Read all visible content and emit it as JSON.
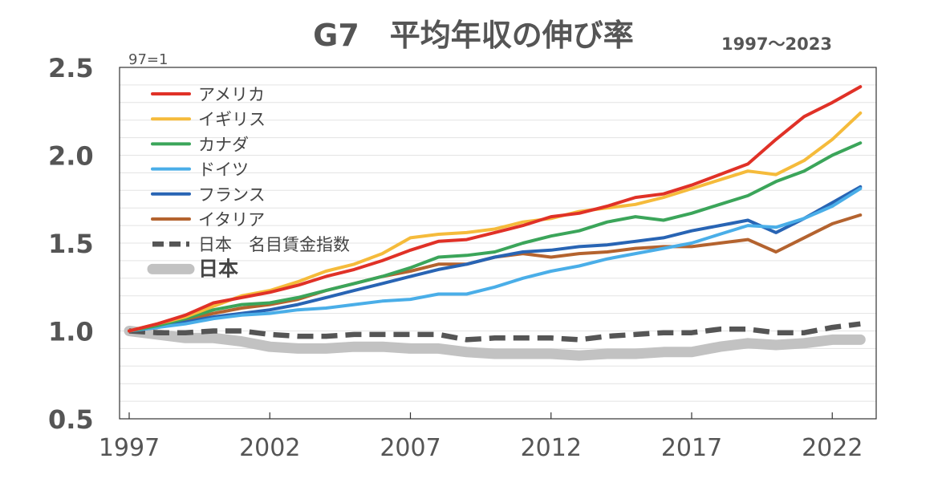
{
  "chart_data": {
    "type": "line",
    "title": "G7　平均年収の伸び率",
    "subtitle": "1997～2023",
    "index_note": "97=1",
    "xlabel": "",
    "ylabel": "",
    "xlim": [
      1997,
      2023
    ],
    "ylim": [
      0.5,
      2.5
    ],
    "y_ticks": [
      "0.5",
      "1.0",
      "1.5",
      "2.0",
      "2.5"
    ],
    "x_ticks": [
      "1997",
      "2002",
      "2007",
      "2012",
      "2017",
      "2022"
    ],
    "grid": "horizontal",
    "legend_position": "top-left",
    "x": [
      1997,
      1998,
      1999,
      2000,
      2001,
      2002,
      2003,
      2004,
      2005,
      2006,
      2007,
      2008,
      2009,
      2010,
      2011,
      2012,
      2013,
      2014,
      2015,
      2016,
      2017,
      2018,
      2019,
      2020,
      2021,
      2022,
      2023
    ],
    "series": [
      {
        "name": "アメリカ",
        "color": "#e03127",
        "style": "solid",
        "values": [
          1.0,
          1.04,
          1.09,
          1.16,
          1.19,
          1.22,
          1.26,
          1.31,
          1.35,
          1.4,
          1.46,
          1.51,
          1.52,
          1.56,
          1.6,
          1.65,
          1.67,
          1.71,
          1.76,
          1.78,
          1.83,
          1.89,
          1.95,
          2.09,
          2.22,
          2.3,
          2.39
        ]
      },
      {
        "name": "イギリス",
        "color": "#f5bb3b",
        "style": "solid",
        "values": [
          1.0,
          1.04,
          1.08,
          1.14,
          1.2,
          1.23,
          1.28,
          1.34,
          1.38,
          1.44,
          1.53,
          1.55,
          1.56,
          1.58,
          1.62,
          1.64,
          1.68,
          1.7,
          1.72,
          1.76,
          1.81,
          1.86,
          1.91,
          1.89,
          1.97,
          2.09,
          2.24
        ]
      },
      {
        "name": "カナダ",
        "color": "#3ba55a",
        "style": "solid",
        "values": [
          1.0,
          1.03,
          1.07,
          1.12,
          1.15,
          1.16,
          1.19,
          1.23,
          1.27,
          1.31,
          1.36,
          1.42,
          1.43,
          1.45,
          1.5,
          1.54,
          1.57,
          1.62,
          1.65,
          1.63,
          1.67,
          1.72,
          1.77,
          1.85,
          1.91,
          2.0,
          2.07
        ]
      },
      {
        "name": "ドイツ",
        "color": "#4aaee8",
        "style": "solid",
        "values": [
          1.0,
          1.02,
          1.04,
          1.07,
          1.09,
          1.1,
          1.12,
          1.13,
          1.15,
          1.17,
          1.18,
          1.21,
          1.21,
          1.25,
          1.3,
          1.34,
          1.37,
          1.41,
          1.44,
          1.47,
          1.5,
          1.55,
          1.6,
          1.59,
          1.64,
          1.71,
          1.81
        ]
      },
      {
        "name": "フランス",
        "color": "#2864b4",
        "style": "solid",
        "values": [
          1.0,
          1.02,
          1.05,
          1.08,
          1.1,
          1.12,
          1.15,
          1.19,
          1.23,
          1.27,
          1.31,
          1.35,
          1.38,
          1.42,
          1.45,
          1.46,
          1.48,
          1.49,
          1.51,
          1.53,
          1.57,
          1.6,
          1.63,
          1.56,
          1.64,
          1.73,
          1.82
        ]
      },
      {
        "name": "イタリア",
        "color": "#b4632f",
        "style": "solid",
        "values": [
          1.0,
          1.03,
          1.06,
          1.1,
          1.13,
          1.15,
          1.18,
          1.23,
          1.27,
          1.31,
          1.34,
          1.38,
          1.38,
          1.42,
          1.44,
          1.42,
          1.44,
          1.45,
          1.47,
          1.48,
          1.48,
          1.5,
          1.52,
          1.45,
          1.53,
          1.61,
          1.66
        ]
      },
      {
        "name": "日本　名目賃金指数",
        "color": "#555555",
        "style": "dashed",
        "values": [
          1.0,
          0.99,
          0.99,
          1.0,
          1.0,
          0.98,
          0.97,
          0.97,
          0.98,
          0.98,
          0.98,
          0.98,
          0.95,
          0.96,
          0.96,
          0.96,
          0.95,
          0.97,
          0.98,
          0.99,
          0.99,
          1.01,
          1.01,
          0.99,
          0.99,
          1.02,
          1.04
        ]
      },
      {
        "name": "日本",
        "color": "#c2c2c2",
        "style": "thick",
        "values": [
          1.0,
          0.98,
          0.96,
          0.96,
          0.94,
          0.91,
          0.9,
          0.9,
          0.91,
          0.91,
          0.9,
          0.9,
          0.88,
          0.87,
          0.87,
          0.87,
          0.86,
          0.87,
          0.87,
          0.88,
          0.88,
          0.91,
          0.93,
          0.92,
          0.93,
          0.95,
          0.95
        ]
      }
    ]
  }
}
